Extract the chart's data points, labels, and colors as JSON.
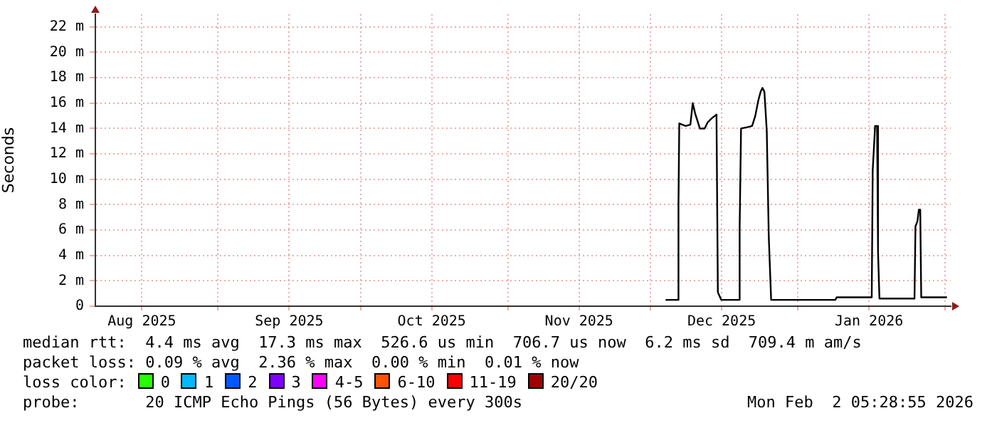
{
  "chart_data": {
    "type": "line",
    "ylabel": "Seconds",
    "x": [
      "2025-12-04T05:00",
      "2025-12-06T17:00",
      "2025-12-06T22:00",
      "2025-12-07T02:00",
      "2025-12-08T10:00",
      "2025-12-09T10:00",
      "2025-12-09T22:00",
      "2025-12-10T10:00",
      "2025-12-11T10:00",
      "2025-12-12T10:00",
      "2025-12-13T02:00",
      "2025-12-13T22:00",
      "2025-12-14T22:00",
      "2025-12-15T05:00",
      "2025-12-15T22:00",
      "2025-12-19T14:00",
      "2025-12-19T19:00",
      "2025-12-20T02:00",
      "2025-12-21T10:00",
      "2025-12-22T10:00",
      "2025-12-23T02:00",
      "2025-12-23T17:00",
      "2025-12-24T05:00",
      "2025-12-24T14:00",
      "2025-12-25T00:00",
      "2025-12-25T12:00",
      "2025-12-25T22:00",
      "2025-12-26T10:00",
      "2026-01-08T22:00",
      "2026-01-09T05:00",
      "2026-01-16T14:00",
      "2026-01-16T19:00",
      "2026-01-17T07:00",
      "2026-01-17T17:00",
      "2026-01-17T22:00",
      "2026-01-18T05:00",
      "2026-01-25T14:00",
      "2026-01-25T19:00",
      "2026-01-26T05:00",
      "2026-01-26T12:00",
      "2026-01-26T19:00",
      "2026-01-27T00:00",
      "2026-02-01T10:00"
    ],
    "series": [
      {
        "color": "#000000",
        "values": [
          0.5,
          0.5,
          8,
          14.4,
          14.2,
          14.3,
          16,
          15.2,
          14,
          14,
          14.5,
          14.8,
          15.1,
          1.1,
          0.5,
          0.5,
          6.2,
          14,
          14.1,
          14.2,
          15,
          16.2,
          16.9,
          17.2,
          16.9,
          13.8,
          5.5,
          0.5,
          0.5,
          0.7,
          0.7,
          10.7,
          14.2,
          14.2,
          4.2,
          0.6,
          0.6,
          6.3,
          6.7,
          7.6,
          7.6,
          0.7,
          0.7
        ]
      },
      {
        "name": "0",
        "color": "#26ff00",
        "values": [
          null,
          null,
          null,
          null,
          null,
          null,
          null,
          null,
          null,
          null,
          null,
          null,
          null,
          null,
          null,
          null,
          null,
          null,
          null,
          null,
          null,
          null,
          null,
          null,
          null,
          null,
          null,
          null,
          null,
          null,
          null,
          null,
          null,
          null,
          null,
          null,
          null,
          null,
          null,
          null,
          null,
          null,
          null
        ]
      },
      {
        "name": "1",
        "color": "#00b8ff",
        "values": [
          null,
          null,
          null,
          null,
          null,
          null,
          null,
          null,
          null,
          null,
          null,
          null,
          null,
          null,
          null,
          null,
          null,
          null,
          null,
          null,
          null,
          null,
          null,
          null,
          null,
          null,
          null,
          null,
          null,
          null,
          null,
          null,
          null,
          null,
          null,
          null,
          null,
          null,
          null,
          null,
          null,
          null,
          null
        ]
      },
      {
        "name": "2",
        "color": "#0059ff",
        "values": [
          null,
          null,
          null,
          null,
          null,
          null,
          null,
          null,
          null,
          null,
          null,
          null,
          null,
          null,
          null,
          null,
          null,
          null,
          null,
          null,
          null,
          null,
          null,
          null,
          null,
          null,
          null,
          null,
          null,
          null,
          null,
          null,
          null,
          null,
          null,
          null,
          null,
          null,
          null,
          null,
          null,
          null,
          null
        ]
      },
      {
        "name": "3",
        "color": "#7e00ff",
        "values": [
          null,
          null,
          null,
          null,
          null,
          null,
          null,
          null,
          null,
          null,
          null,
          null,
          null,
          null,
          null,
          null,
          null,
          null,
          null,
          null,
          null,
          null,
          null,
          null,
          null,
          null,
          null,
          null,
          null,
          null,
          null,
          null,
          null,
          null,
          null,
          null,
          null,
          null,
          null,
          null,
          null,
          null,
          null
        ]
      },
      {
        "name": "4-5",
        "color": "#ff00ff",
        "values": [
          null,
          null,
          null,
          null,
          null,
          null,
          null,
          null,
          null,
          null,
          null,
          null,
          null,
          null,
          null,
          null,
          null,
          null,
          null,
          null,
          null,
          null,
          null,
          null,
          null,
          null,
          null,
          null,
          null,
          null,
          null,
          null,
          null,
          null,
          null,
          null,
          null,
          null,
          null,
          null,
          null,
          null,
          null
        ]
      },
      {
        "name": "6-10",
        "color": "#ff5500",
        "values": [
          null,
          null,
          null,
          null,
          null,
          null,
          null,
          null,
          null,
          null,
          null,
          null,
          null,
          null,
          null,
          null,
          null,
          null,
          null,
          null,
          null,
          null,
          null,
          null,
          null,
          null,
          null,
          null,
          null,
          null,
          null,
          null,
          null,
          null,
          null,
          null,
          null,
          null,
          null,
          null,
          null,
          null,
          null
        ]
      },
      {
        "name": "11-19",
        "color": "#ff0000",
        "values": [
          null,
          null,
          null,
          null,
          null,
          null,
          null,
          null,
          null,
          null,
          null,
          null,
          null,
          null,
          null,
          null,
          null,
          null,
          null,
          null,
          null,
          null,
          null,
          null,
          null,
          null,
          null,
          null,
          null,
          null,
          null,
          null,
          null,
          null,
          null,
          null,
          null,
          null,
          null,
          null,
          null,
          null,
          null
        ]
      },
      {
        "name": "20/20",
        "color": "#a10000",
        "values": [
          null,
          null,
          null,
          null,
          null,
          null,
          null,
          null,
          null,
          null,
          null,
          null,
          null,
          null,
          null,
          null,
          null,
          null,
          null,
          null,
          null,
          null,
          null,
          null,
          null,
          null,
          null,
          null,
          null,
          null,
          null,
          null,
          null,
          null,
          null,
          null,
          null,
          null,
          null,
          null,
          null,
          null,
          null
        ]
      }
    ],
    "legend": "bottom",
    "legend_title": "loss color:",
    "grid": true,
    "marker": "none",
    "line_style": "solid",
    "xlim": [
      "2025-08-06T05:00",
      "2026-02-02T05:00"
    ],
    "xticks": [
      {
        "value": "2025-08-16",
        "label": "Aug 2025"
      },
      {
        "value": "2025-09-01",
        "label": null
      },
      {
        "value": "2025-09-16",
        "label": "Sep 2025"
      },
      {
        "value": "2025-10-01",
        "label": null
      },
      {
        "value": "2025-10-16",
        "label": "Oct 2025"
      },
      {
        "value": "2025-11-01",
        "label": null
      },
      {
        "value": "2025-11-16",
        "label": "Nov 2025"
      },
      {
        "value": "2025-12-01",
        "label": null
      },
      {
        "value": "2025-12-16",
        "label": "Dec 2025"
      },
      {
        "value": "2026-01-01",
        "label": null
      },
      {
        "value": "2026-01-16",
        "label": "Jan 2026"
      },
      {
        "value": "2026-02-01",
        "label": null
      }
    ],
    "ylim": [
      0,
      23
    ],
    "yticks": [
      0,
      {
        "value": 2,
        "label": "2 m"
      },
      {
        "value": 4,
        "label": "4 m"
      },
      {
        "value": 6,
        "label": "6 m"
      },
      {
        "value": 8,
        "label": "8 m"
      },
      {
        "value": 10,
        "label": "10 m"
      },
      {
        "value": 12,
        "label": "12 m"
      },
      {
        "value": 14,
        "label": "14 m"
      },
      {
        "value": 16,
        "label": "16 m"
      },
      {
        "value": 18,
        "label": "18 m"
      },
      {
        "value": 20,
        "label": "20 m"
      },
      {
        "value": 22,
        "label": "22 m"
      }
    ],
    "annotations": [
      "median rtt:  4.4 ms avg  17.3 ms max  526.6 us min  706.7 us now  6.2 ms sd  709.4 m am/s",
      "packet loss: 0.09 % avg  2.36 % max  0.00 % min  0.01 % now",
      "probe:       20 ICMP Echo Pings (56 Bytes) every 300s",
      "Mon Feb  2 05:28:55 2026"
    ]
  }
}
